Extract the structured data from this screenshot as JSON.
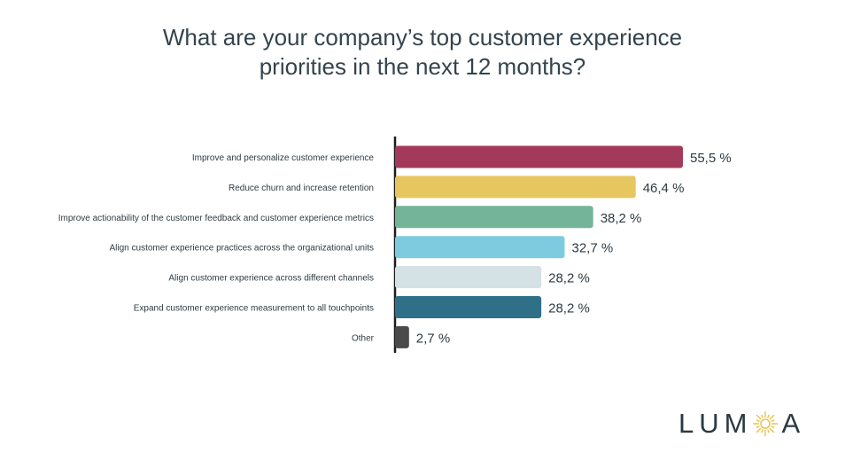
{
  "chart_data": {
    "type": "bar",
    "orientation": "horizontal",
    "title_lines": [
      "What are your company’s top customer experience",
      "priorities in the next 12 months?"
    ],
    "categories": [
      "Improve and personalize customer experience",
      "Reduce churn and increase retention",
      "Improve actionability of the customer feedback and customer experience metrics",
      "Align customer experience practices across the organizational units",
      "Align customer experience across different channels",
      "Expand customer experience measurement to all touchpoints",
      "Other"
    ],
    "values": [
      55.5,
      46.4,
      38.2,
      32.7,
      28.2,
      28.2,
      2.7
    ],
    "value_labels": [
      "55,5 %",
      "46,4 %",
      "38,2 %",
      "32,7 %",
      "28,2 %",
      "28,2 %",
      "2,7 %"
    ],
    "colors": [
      "#a33a5b",
      "#e6c65e",
      "#74b59a",
      "#7ecbe0",
      "#d4e1e5",
      "#2f7088",
      "#4a4a4a"
    ],
    "xlim": [
      0,
      55.5
    ],
    "grid": false,
    "legend": "none"
  },
  "logo": {
    "text_left": "LUM",
    "text_right": "A",
    "icon": "sun-icon",
    "accent": "#e7c24a"
  }
}
